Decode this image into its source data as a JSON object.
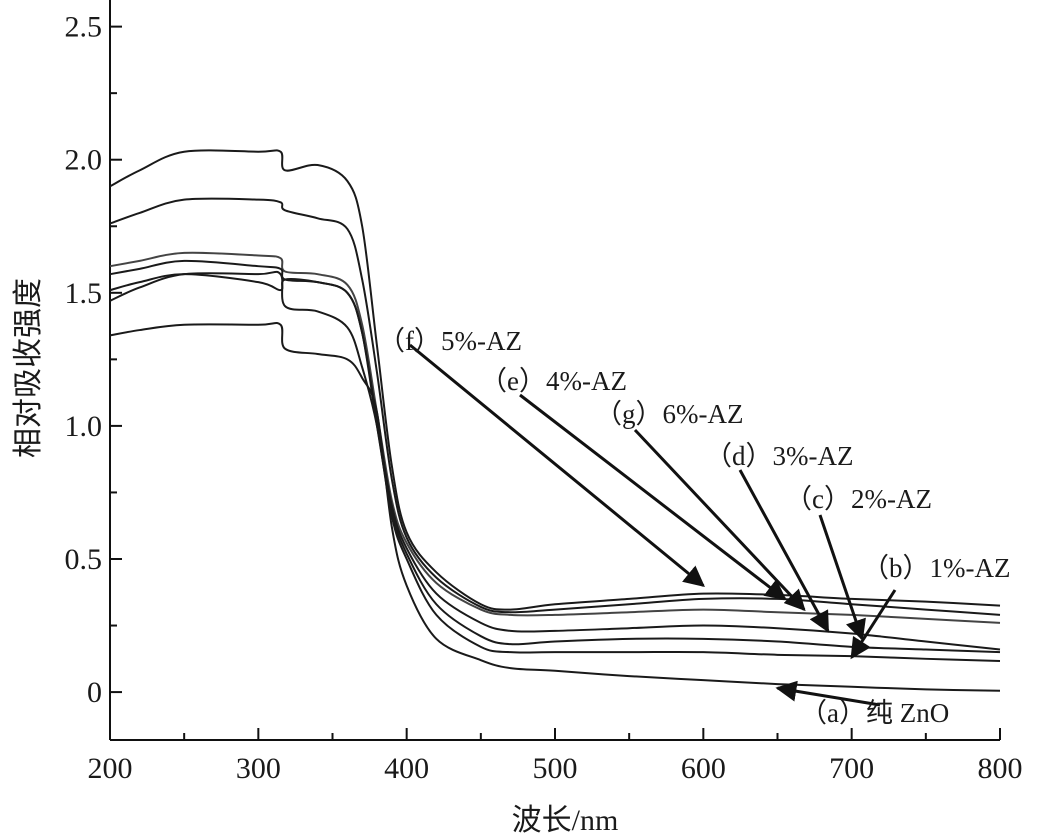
{
  "chart_data": {
    "type": "line",
    "title": "",
    "xlabel": "波长/nm",
    "ylabel": "相对吸收强度",
    "xlim": [
      200,
      800
    ],
    "ylim": [
      -0.18,
      2.6
    ],
    "xticks": [
      "200",
      "300",
      "400",
      "500",
      "600",
      "700",
      "800"
    ],
    "yticks": [
      "0",
      "0.5",
      "1.0",
      "1.5",
      "2.0",
      "2.5"
    ],
    "grid": false,
    "x": [
      200,
      220,
      250,
      300,
      315,
      318,
      340,
      360,
      370,
      380,
      390,
      400,
      420,
      450,
      470,
      500,
      550,
      600,
      650,
      700,
      750,
      800
    ],
    "series": [
      {
        "name": "(f) 5%-AZ",
        "values": [
          1.9,
          1.96,
          2.03,
          2.03,
          2.03,
          1.96,
          1.98,
          1.92,
          1.75,
          1.3,
          0.85,
          0.6,
          0.45,
          0.33,
          0.31,
          0.33,
          0.35,
          0.37,
          0.365,
          0.35,
          0.34,
          0.325
        ]
      },
      {
        "name": "(e) 4%-AZ",
        "values": [
          1.76,
          1.8,
          1.85,
          1.85,
          1.84,
          1.81,
          1.78,
          1.74,
          1.55,
          1.2,
          0.8,
          0.58,
          0.43,
          0.32,
          0.3,
          0.31,
          0.33,
          0.35,
          0.35,
          0.33,
          0.31,
          0.29
        ]
      },
      {
        "name": "(g) 6%-AZ",
        "values": [
          1.6,
          1.62,
          1.65,
          1.64,
          1.63,
          1.58,
          1.57,
          1.53,
          1.38,
          1.05,
          0.72,
          0.56,
          0.41,
          0.31,
          0.29,
          0.29,
          0.3,
          0.31,
          0.3,
          0.29,
          0.275,
          0.26
        ]
      },
      {
        "name": "(d) 3%-AZ",
        "values": [
          1.57,
          1.59,
          1.62,
          1.6,
          1.59,
          1.55,
          1.54,
          1.5,
          1.35,
          1.02,
          0.7,
          0.54,
          0.37,
          0.26,
          0.23,
          0.23,
          0.24,
          0.25,
          0.24,
          0.22,
          0.19,
          0.16
        ]
      },
      {
        "name": "(c) 2%-AZ",
        "values": [
          1.51,
          1.54,
          1.57,
          1.54,
          1.51,
          1.55,
          1.54,
          1.5,
          1.35,
          1.0,
          0.68,
          0.52,
          0.33,
          0.21,
          0.18,
          0.19,
          0.2,
          0.2,
          0.19,
          0.17,
          0.16,
          0.15
        ]
      },
      {
        "name": "(b) 1%-AZ",
        "values": [
          1.47,
          1.52,
          1.57,
          1.57,
          1.57,
          1.45,
          1.43,
          1.37,
          1.22,
          1.0,
          0.66,
          0.5,
          0.29,
          0.17,
          0.15,
          0.15,
          0.15,
          0.15,
          0.14,
          0.135,
          0.125,
          0.117
        ]
      },
      {
        "name": "(a) 纯 ZnO",
        "values": [
          1.34,
          1.36,
          1.38,
          1.38,
          1.38,
          1.29,
          1.27,
          1.25,
          1.18,
          1.05,
          0.62,
          0.4,
          0.2,
          0.12,
          0.09,
          0.08,
          0.06,
          0.045,
          0.03,
          0.02,
          0.01,
          0.005
        ]
      }
    ],
    "annotations": [
      {
        "text": "（f）5%-AZ",
        "target": [
          600,
          0.4
        ]
      },
      {
        "text": "（e）4%-AZ",
        "target": [
          655,
          0.35
        ]
      },
      {
        "text": "（g）6%-AZ",
        "target": [
          668,
          0.31
        ]
      },
      {
        "text": "（d）3%-AZ",
        "target": [
          684,
          0.23
        ]
      },
      {
        "text": "（c）2%-AZ",
        "target": [
          707,
          0.2
        ]
      },
      {
        "text": "（b）1%-AZ",
        "target": [
          700,
          0.13
        ]
      },
      {
        "text": "（a）纯 ZnO",
        "target": [
          650,
          0.015
        ]
      }
    ]
  }
}
